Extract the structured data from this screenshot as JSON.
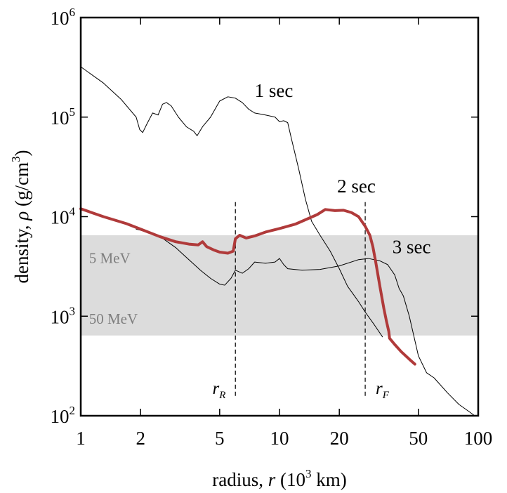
{
  "chart_data": {
    "type": "line",
    "x_scale": "log",
    "y_scale": "log",
    "xlim": [
      1,
      100
    ],
    "ylim": [
      100,
      1000000
    ],
    "xlabel": {
      "prefix": "radius, ",
      "var": "r",
      "unit_open": " (10",
      "unit_sup": "3",
      "unit_close": " km)"
    },
    "ylabel": {
      "prefix": "density, ",
      "var": "ρ",
      "unit_open": " (g/cm",
      "unit_sup": "3",
      "unit_close": ")"
    },
    "x_ticks": [
      {
        "value": 1,
        "label": "1"
      },
      {
        "value": 2,
        "label": "2"
      },
      {
        "value": 5,
        "label": "5"
      },
      {
        "value": 10,
        "label": "10"
      },
      {
        "value": 20,
        "label": "20"
      },
      {
        "value": 50,
        "label": "50"
      },
      {
        "value": 100,
        "label": "100"
      }
    ],
    "y_ticks": [
      {
        "value": 100,
        "base": "10",
        "exp": "2"
      },
      {
        "value": 1000,
        "base": "10",
        "exp": "3"
      },
      {
        "value": 10000,
        "base": "10",
        "exp": "4"
      },
      {
        "value": 100000,
        "base": "10",
        "exp": "5"
      },
      {
        "value": 1000000,
        "base": "10",
        "exp": "6"
      }
    ],
    "band": {
      "y_range": [
        640,
        6500
      ],
      "color": "#dcdcdc",
      "labels": [
        {
          "text": "5 MeV",
          "x": 1.1,
          "y": 3900
        },
        {
          "text": "50 MeV",
          "x": 1.1,
          "y": 960
        }
      ]
    },
    "markers": [
      {
        "x": 6.0,
        "y_range": [
          150,
          14000
        ],
        "label": "r",
        "sub": "R",
        "label_x": 4.6,
        "label_y": 165
      },
      {
        "x": 27.0,
        "y_range": [
          150,
          14000
        ],
        "label": "r",
        "sub": "F",
        "label_x": 30.5,
        "label_y": 165
      }
    ],
    "annotations": [
      {
        "text": "1 sec",
        "x": 7.5,
        "y": 160000
      },
      {
        "text": "2 sec",
        "x": 19.5,
        "y": 17500
      },
      {
        "text": "3 sec",
        "x": 37,
        "y": 4300
      }
    ],
    "series": [
      {
        "color": "#000000",
        "width": 1,
        "points": [
          [
            1,
            320000
          ],
          [
            1.3,
            220000
          ],
          [
            1.6,
            150000
          ],
          [
            1.9,
            100000
          ],
          [
            1.98,
            75000
          ],
          [
            2.05,
            70000
          ],
          [
            2.15,
            85000
          ],
          [
            2.3,
            110000
          ],
          [
            2.45,
            105000
          ],
          [
            2.58,
            135000
          ],
          [
            2.7,
            140000
          ],
          [
            2.85,
            130000
          ],
          [
            3.1,
            100000
          ],
          [
            3.4,
            80000
          ],
          [
            3.7,
            72000
          ],
          [
            3.85,
            65000
          ],
          [
            4.1,
            80000
          ],
          [
            4.5,
            100000
          ],
          [
            5.0,
            145000
          ],
          [
            5.5,
            160000
          ],
          [
            6.0,
            155000
          ],
          [
            6.5,
            140000
          ],
          [
            7.0,
            120000
          ],
          [
            7.5,
            110000
          ],
          [
            8.5,
            105000
          ],
          [
            9.5,
            100000
          ],
          [
            10.0,
            90000
          ],
          [
            10.5,
            92000
          ],
          [
            11.0,
            88000
          ],
          [
            11.5,
            60000
          ],
          [
            12.5,
            30000
          ],
          [
            13.5,
            15000
          ],
          [
            14.5,
            9000
          ],
          [
            16,
            6500
          ],
          [
            18,
            4500
          ],
          [
            20,
            3000
          ],
          [
            22,
            2000
          ],
          [
            25,
            1400
          ],
          [
            27,
            1100
          ],
          [
            30,
            820
          ],
          [
            33,
            620
          ]
        ]
      },
      {
        "color": "#000000",
        "width": 1,
        "points": [
          [
            1.9,
            7500
          ],
          [
            2.0,
            7300
          ],
          [
            2.3,
            6700
          ],
          [
            2.6,
            6000
          ],
          [
            3.0,
            4900
          ],
          [
            3.5,
            3700
          ],
          [
            4.0,
            2900
          ],
          [
            4.5,
            2400
          ],
          [
            5.0,
            2100
          ],
          [
            5.3,
            2050
          ],
          [
            5.7,
            2400
          ],
          [
            6.0,
            2900
          ],
          [
            6.5,
            2700
          ],
          [
            7.0,
            3000
          ],
          [
            7.5,
            3500
          ],
          [
            8.5,
            3400
          ],
          [
            9.5,
            3500
          ],
          [
            10.0,
            3800
          ],
          [
            10.5,
            3300
          ],
          [
            11,
            3000
          ],
          [
            13,
            2900
          ],
          [
            16,
            2950
          ],
          [
            20,
            3200
          ],
          [
            25,
            3700
          ],
          [
            28,
            3800
          ],
          [
            32,
            3600
          ],
          [
            35,
            3300
          ],
          [
            38,
            2600
          ],
          [
            40,
            1900
          ],
          [
            42,
            1600
          ],
          [
            45,
            1000
          ],
          [
            50,
            400
          ],
          [
            55,
            270
          ],
          [
            60,
            240
          ],
          [
            70,
            170
          ],
          [
            80,
            130
          ],
          [
            90,
            110
          ],
          [
            96,
            100
          ]
        ]
      },
      {
        "color": "#b03a3a",
        "width": 4,
        "points": [
          [
            1,
            12000
          ],
          [
            1.3,
            10000
          ],
          [
            1.7,
            8500
          ],
          [
            2.0,
            7500
          ],
          [
            2.5,
            6300
          ],
          [
            3.0,
            5600
          ],
          [
            3.5,
            5300
          ],
          [
            3.9,
            5200
          ],
          [
            4.1,
            5600
          ],
          [
            4.3,
            5000
          ],
          [
            4.7,
            4600
          ],
          [
            5.0,
            4400
          ],
          [
            5.5,
            4300
          ],
          [
            5.85,
            4500
          ],
          [
            6.0,
            6000
          ],
          [
            6.3,
            6500
          ],
          [
            6.8,
            6100
          ],
          [
            7.5,
            6400
          ],
          [
            8.5,
            7000
          ],
          [
            10,
            7600
          ],
          [
            12,
            8400
          ],
          [
            14,
            9600
          ],
          [
            15.5,
            10500
          ],
          [
            17,
            11800
          ],
          [
            19,
            11500
          ],
          [
            21,
            11600
          ],
          [
            23,
            11000
          ],
          [
            25,
            10000
          ],
          [
            27,
            8000
          ],
          [
            28.5,
            6500
          ],
          [
            29.5,
            5000
          ],
          [
            30.5,
            3500
          ],
          [
            32,
            2000
          ],
          [
            33.5,
            1200
          ],
          [
            34.5,
            900
          ],
          [
            35.5,
            700
          ],
          [
            35.8,
            600
          ],
          [
            38,
            520
          ],
          [
            41,
            440
          ],
          [
            45,
            370
          ],
          [
            48,
            330
          ]
        ]
      }
    ]
  }
}
